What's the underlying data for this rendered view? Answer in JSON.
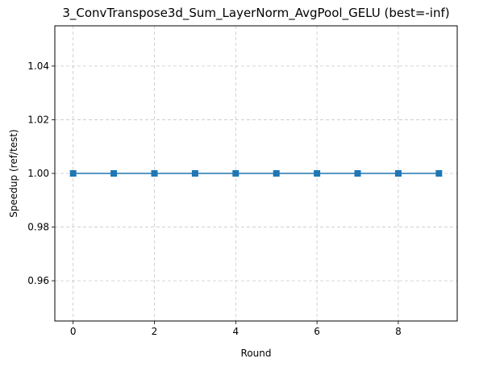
{
  "chart_data": {
    "type": "line",
    "title": "3_ConvTranspose3d_Sum_LayerNorm_AvgPool_GELU (best=-inf)",
    "xlabel": "Round",
    "ylabel": "Speedup (ref/test)",
    "xlim": [
      -0.45,
      9.45
    ],
    "ylim": [
      0.945,
      1.055
    ],
    "xticks": [
      0,
      2,
      4,
      6,
      8
    ],
    "yticks": [
      0.96,
      0.98,
      1.0,
      1.02,
      1.04
    ],
    "ytick_labels": [
      "0.96",
      "0.98",
      "1.00",
      "1.02",
      "1.04"
    ],
    "grid": true,
    "grid_style": "dashed",
    "series": [
      {
        "x": [
          0,
          1,
          2,
          3,
          4,
          5,
          6,
          7,
          8,
          9
        ],
        "values": [
          1.0,
          1.0,
          1.0,
          1.0,
          1.0,
          1.0,
          1.0,
          1.0,
          1.0,
          1.0
        ],
        "color": "#1f77b4",
        "marker": "square"
      }
    ]
  }
}
